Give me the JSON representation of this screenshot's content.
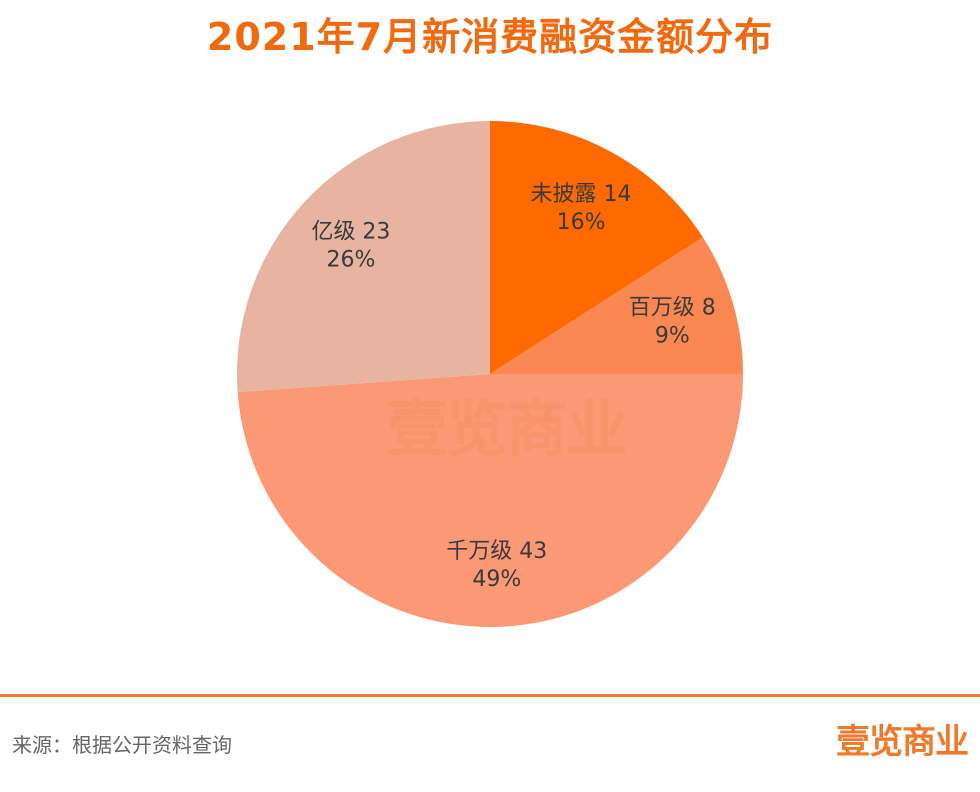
{
  "title": "2021年7月新消费融资金额分布",
  "source": "来源：根据公开资料查询",
  "logo_text": "壹览商业",
  "watermark_text": "壹览商业",
  "chart_data": {
    "type": "pie",
    "title": "2021年7月新消费融资金额分布",
    "slices": [
      {
        "label": "未披露",
        "value": 14,
        "percent": "16%",
        "color": "#ff6a00"
      },
      {
        "label": "百万级",
        "value": 8,
        "percent": "9%",
        "color": "#fb8752"
      },
      {
        "label": "千万级",
        "value": 43,
        "percent": "49%",
        "color": "#fb9977"
      },
      {
        "label": "亿级",
        "value": 23,
        "percent": "26%",
        "color": "#e8b4a2"
      }
    ],
    "start_angle": "12 o'clock",
    "direction": "clockwise",
    "legend": "none",
    "colors": {
      "accent": "#f26a10",
      "divider": "#f07a2a"
    }
  }
}
